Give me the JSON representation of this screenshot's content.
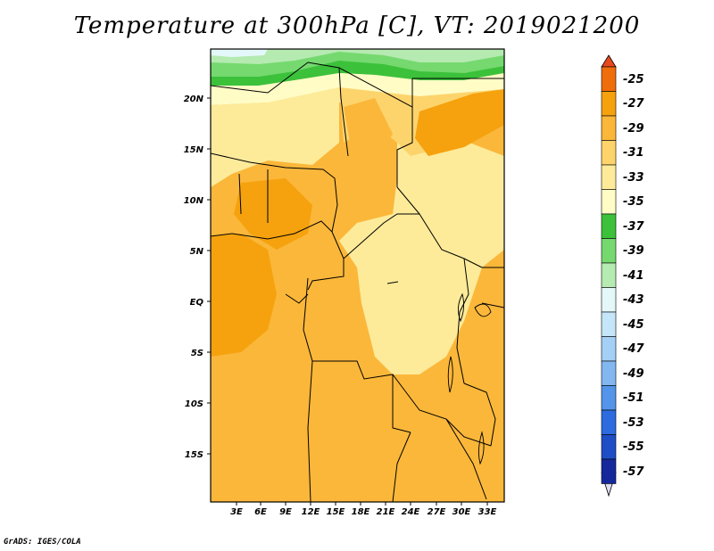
{
  "title": "Temperature at 300hPa [C], VT: 2019021200",
  "credit": "GrADS: IGES/COLA",
  "map": {
    "lat_labels": [
      "20N",
      "15N",
      "10N",
      "5N",
      "EQ",
      "5S",
      "10S",
      "15S"
    ],
    "lon_labels": [
      "3E",
      "6E",
      "9E",
      "12E",
      "15E",
      "18E",
      "21E",
      "24E",
      "27E",
      "30E",
      "33E"
    ]
  },
  "colorbar": {
    "labels": [
      "-25",
      "-27",
      "-29",
      "-31",
      "-33",
      "-35",
      "-37",
      "-39",
      "-41",
      "-43",
      "-45",
      "-47",
      "-49",
      "-51",
      "-53",
      "-55",
      "-57"
    ],
    "colors": [
      "#e8491b",
      "#f06d0c",
      "#f5a20e",
      "#fbb73a",
      "#fdd46c",
      "#fdeb9a",
      "#fffcc6",
      "#3cc13b",
      "#75d96f",
      "#b5eab1",
      "#e4f8f9",
      "#c5e6f8",
      "#a5d0f6",
      "#82b7f0",
      "#5495e9",
      "#2d6bde",
      "#1f4dc5",
      "#14289c",
      "#ddddf4"
    ]
  }
}
